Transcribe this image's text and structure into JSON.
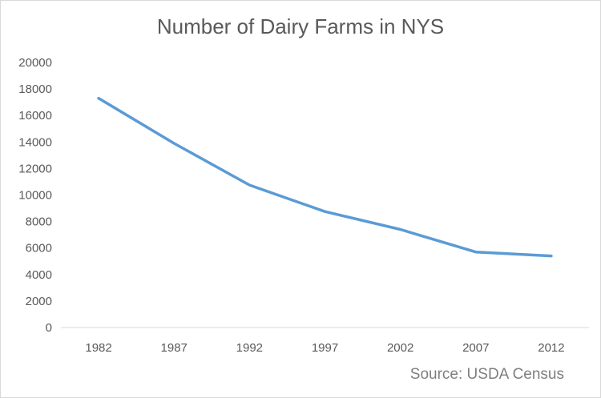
{
  "chart_data": {
    "type": "line",
    "title": "Number of Dairy Farms in NYS",
    "xlabel": "",
    "ylabel": "",
    "categories": [
      "1982",
      "1987",
      "1992",
      "1997",
      "2002",
      "2007",
      "2012"
    ],
    "series": [
      {
        "values": [
          17300,
          13900,
          10750,
          8750,
          7400,
          5700,
          5400
        ],
        "color": "#5b9bd5"
      }
    ],
    "ylim": [
      0,
      20000
    ],
    "yticks": [
      0,
      2000,
      4000,
      6000,
      8000,
      10000,
      12000,
      14000,
      16000,
      18000,
      20000
    ],
    "grid": false,
    "legend": "none",
    "annotation": "Source: USDA Census",
    "axis_color": "#d9d9d9",
    "text_color": "#595959"
  }
}
